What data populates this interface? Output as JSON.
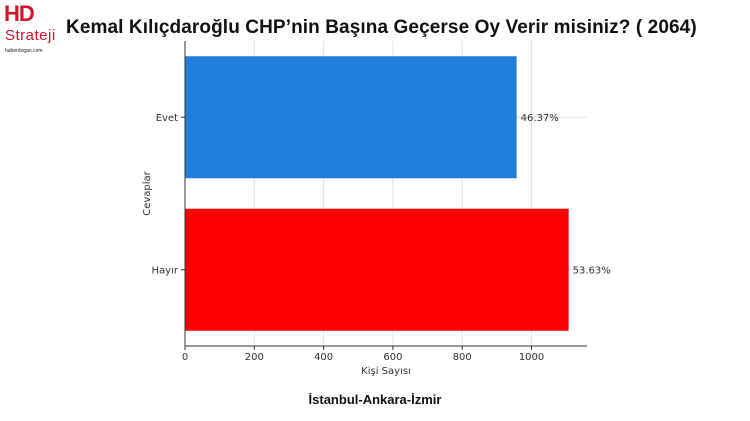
{
  "logo": {
    "mark": "HD",
    "name": "Strateji",
    "domain": "haberdogan.com"
  },
  "title": "Kemal Kılıçdaroğlu CHP’nin Başına Geçerse Oy Verir misiniz? ( 2064)",
  "footer": "İstanbul-Ankara-İzmir",
  "chart_data": {
    "type": "bar",
    "orientation": "horizontal",
    "categories": [
      "Evet",
      "Hayır"
    ],
    "values": [
      957,
      1107
    ],
    "data_labels": [
      "46.37%",
      "53.63%"
    ],
    "colors": [
      "#1f7fdb",
      "#ff0000"
    ],
    "xlabel": "Kişi Sayısı",
    "ylabel": "Cevaplar",
    "xlim": [
      0,
      1160
    ],
    "xticks": [
      0,
      200,
      400,
      600,
      800,
      1000
    ],
    "grid": true
  }
}
